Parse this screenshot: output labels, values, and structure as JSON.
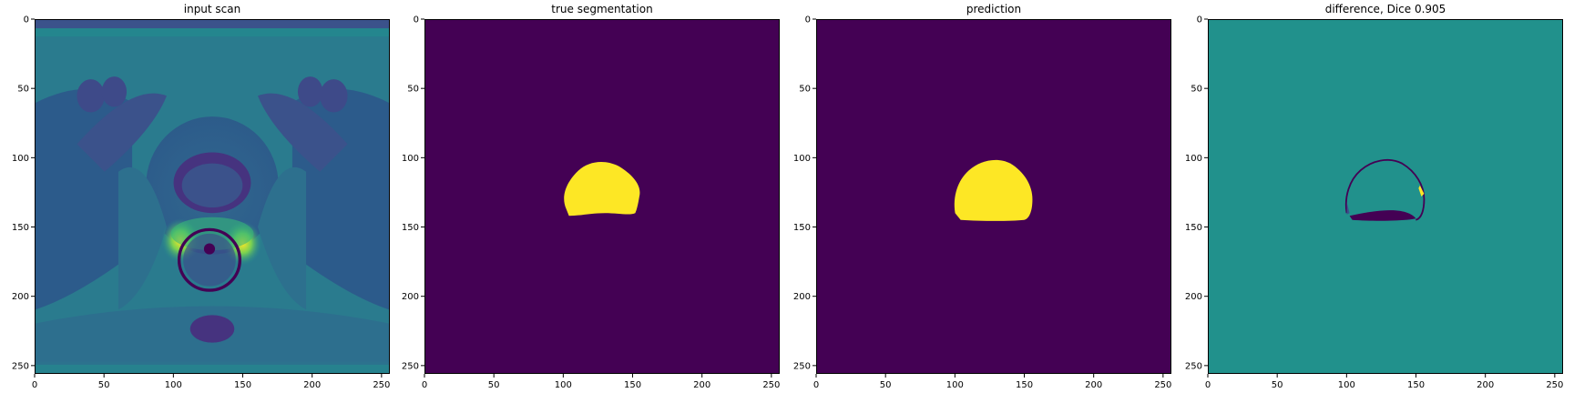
{
  "colors": {
    "viridis_low": "#440154",
    "viridis_mid": "#21918c",
    "viridis_high": "#fde725"
  },
  "axes": {
    "x_ticks": [
      0,
      50,
      100,
      150,
      200,
      250
    ],
    "y_ticks": [
      0,
      50,
      100,
      150,
      200,
      250
    ],
    "range": [
      0,
      256
    ]
  },
  "panels": [
    {
      "title": "input scan"
    },
    {
      "title": "true segmentation"
    },
    {
      "title": "prediction"
    },
    {
      "title": "difference, Dice 0.905"
    }
  ]
}
